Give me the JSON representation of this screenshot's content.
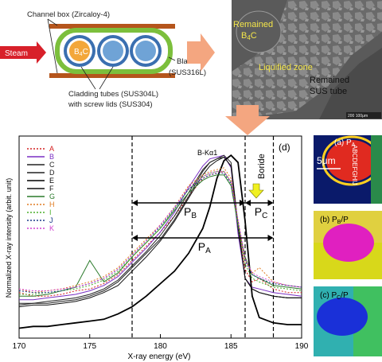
{
  "schematic": {
    "channel_box": "Channel box (Zircaloy-4)",
    "steam": "Steam",
    "b4c": "B",
    "b4c_sub": "4",
    "b4c_suffix": "C",
    "blade": "Blade",
    "blade_material": "(SUS316L)",
    "cladding_line1": "Cladding tubes (SUS304L)",
    "cladding_line2": "with screw lids (SUS304)",
    "colors": {
      "box": "#b5551c",
      "blade": "#7cbf3c",
      "tube": "#3a6fb0",
      "steam": "#d8202a",
      "arrow": "#f4a680",
      "b4c": "#f3a73a"
    }
  },
  "micrograph": {
    "remained_b4c_line1": "Remained",
    "remained_b4c_line2_b": "B",
    "remained_b4c_line2_sub": "4",
    "remained_b4c_line2_c": "C",
    "liquified": "Liquified zone",
    "sus_line1": "Remained",
    "sus_line2": "SUS tube",
    "scale": "200 100μm"
  },
  "chart_data": {
    "type": "line",
    "panel_label": "(d)",
    "xlabel": "X-ray energy (eV)",
    "ylabel": "Normalized X-ray intensity (arbit. unit)",
    "xlim": [
      170,
      190
    ],
    "xticks": [
      170,
      175,
      180,
      185,
      190
    ],
    "peak_label": "B-Kα1",
    "boride_label": "Boride",
    "dashed_lines_x": [
      178,
      186,
      188
    ],
    "ranges": [
      {
        "name": "P",
        "sub": "B",
        "from": 178,
        "to": 186
      },
      {
        "name": "P",
        "sub": "C",
        "from": 186,
        "to": 188
      },
      {
        "name": "P",
        "sub": "A",
        "from": 178,
        "to": 188
      }
    ],
    "x": [
      170,
      171,
      172,
      173,
      174,
      175,
      176,
      177,
      178,
      179,
      180,
      181,
      182,
      183,
      183.5,
      184,
      184.5,
      185,
      185.5,
      186,
      186.5,
      187,
      188,
      189,
      190
    ],
    "series": [
      {
        "name": "A",
        "color": "#d42020",
        "dash": "2,2",
        "values": [
          0.22,
          0.2,
          0.2,
          0.21,
          0.23,
          0.24,
          0.27,
          0.32,
          0.4,
          0.48,
          0.56,
          0.65,
          0.76,
          0.86,
          0.88,
          0.89,
          0.9,
          0.84,
          0.6,
          0.35,
          0.28,
          0.3,
          0.24,
          0.22,
          0.22
        ]
      },
      {
        "name": "B",
        "color": "#7a2fc4",
        "dash": "",
        "values": [
          0.18,
          0.18,
          0.19,
          0.2,
          0.21,
          0.23,
          0.26,
          0.31,
          0.39,
          0.47,
          0.56,
          0.67,
          0.81,
          0.93,
          0.97,
          0.98,
          0.99,
          0.92,
          0.55,
          0.3,
          0.25,
          0.24,
          0.22,
          0.21,
          0.2
        ]
      },
      {
        "name": "C",
        "color": "#222222",
        "dash": "",
        "values": [
          0.15,
          0.16,
          0.16,
          0.17,
          0.18,
          0.2,
          0.23,
          0.28,
          0.36,
          0.44,
          0.52,
          0.63,
          0.76,
          0.9,
          0.95,
          0.97,
          0.99,
          0.95,
          0.6,
          0.3,
          0.24,
          0.22,
          0.2,
          0.19,
          0.19
        ]
      },
      {
        "name": "D",
        "color": "#222222",
        "dash": "",
        "values": [
          0.16,
          0.16,
          0.17,
          0.18,
          0.19,
          0.21,
          0.24,
          0.29,
          0.37,
          0.45,
          0.54,
          0.65,
          0.78,
          0.91,
          0.95,
          0.97,
          0.98,
          0.93,
          0.58,
          0.3,
          0.24,
          0.22,
          0.2,
          0.19,
          0.19
        ]
      },
      {
        "name": "E",
        "color": "#000000",
        "dash": "",
        "values": [
          0.02,
          0.03,
          0.03,
          0.04,
          0.05,
          0.06,
          0.07,
          0.1,
          0.14,
          0.2,
          0.27,
          0.34,
          0.44,
          0.58,
          0.7,
          0.86,
          0.96,
          0.99,
          0.95,
          0.62,
          0.2,
          0.08,
          0.05,
          0.04,
          0.04
        ]
      },
      {
        "name": "F",
        "color": "#111111",
        "dash": "",
        "values": [
          0.14,
          0.15,
          0.15,
          0.16,
          0.17,
          0.19,
          0.22,
          0.26,
          0.34,
          0.42,
          0.51,
          0.62,
          0.75,
          0.88,
          0.93,
          0.96,
          0.98,
          0.93,
          0.6,
          0.3,
          0.24,
          0.22,
          0.2,
          0.19,
          0.19
        ]
      },
      {
        "name": "G",
        "color": "#2a7a2a",
        "dash": "",
        "values": [
          0.2,
          0.2,
          0.21,
          0.23,
          0.25,
          0.4,
          0.28,
          0.33,
          0.42,
          0.5,
          0.58,
          0.68,
          0.78,
          0.85,
          0.87,
          0.88,
          0.88,
          0.82,
          0.6,
          0.42,
          0.32,
          0.3,
          0.26,
          0.25,
          0.24
        ]
      },
      {
        "name": "H",
        "color": "#e07b20",
        "dash": "2,2",
        "values": [
          0.24,
          0.22,
          0.23,
          0.24,
          0.26,
          0.28,
          0.31,
          0.36,
          0.44,
          0.52,
          0.6,
          0.7,
          0.82,
          0.88,
          0.9,
          0.91,
          0.92,
          0.86,
          0.62,
          0.4,
          0.33,
          0.36,
          0.28,
          0.26,
          0.25
        ]
      },
      {
        "name": "I",
        "color": "#4caf2a",
        "dash": "2,2",
        "values": [
          0.21,
          0.21,
          0.22,
          0.23,
          0.24,
          0.26,
          0.29,
          0.34,
          0.42,
          0.5,
          0.58,
          0.69,
          0.8,
          0.87,
          0.89,
          0.9,
          0.9,
          0.84,
          0.6,
          0.38,
          0.3,
          0.28,
          0.25,
          0.24,
          0.23
        ]
      },
      {
        "name": "J",
        "color": "#1a3a8a",
        "dash": "2,2",
        "values": [
          0.23,
          0.22,
          0.22,
          0.23,
          0.25,
          0.27,
          0.3,
          0.35,
          0.43,
          0.51,
          0.59,
          0.69,
          0.8,
          0.86,
          0.88,
          0.89,
          0.89,
          0.83,
          0.62,
          0.4,
          0.32,
          0.3,
          0.27,
          0.26,
          0.25
        ]
      },
      {
        "name": "K",
        "color": "#d040d0",
        "dash": "2,2",
        "values": [
          0.24,
          0.23,
          0.23,
          0.24,
          0.25,
          0.27,
          0.3,
          0.35,
          0.43,
          0.51,
          0.6,
          0.7,
          0.81,
          0.87,
          0.89,
          0.9,
          0.9,
          0.84,
          0.63,
          0.41,
          0.33,
          0.31,
          0.28,
          0.26,
          0.25
        ]
      }
    ]
  },
  "maps": {
    "a_label": "(a) P",
    "a_sub": "A",
    "scale": "5μm",
    "points": "ABCDEFGHIJ",
    "b_label": "(b) P",
    "b_sub": "B",
    "b_suffix": "/P",
    "c_label": "(c) P",
    "c_sub": "C",
    "c_suffix": "/P"
  }
}
